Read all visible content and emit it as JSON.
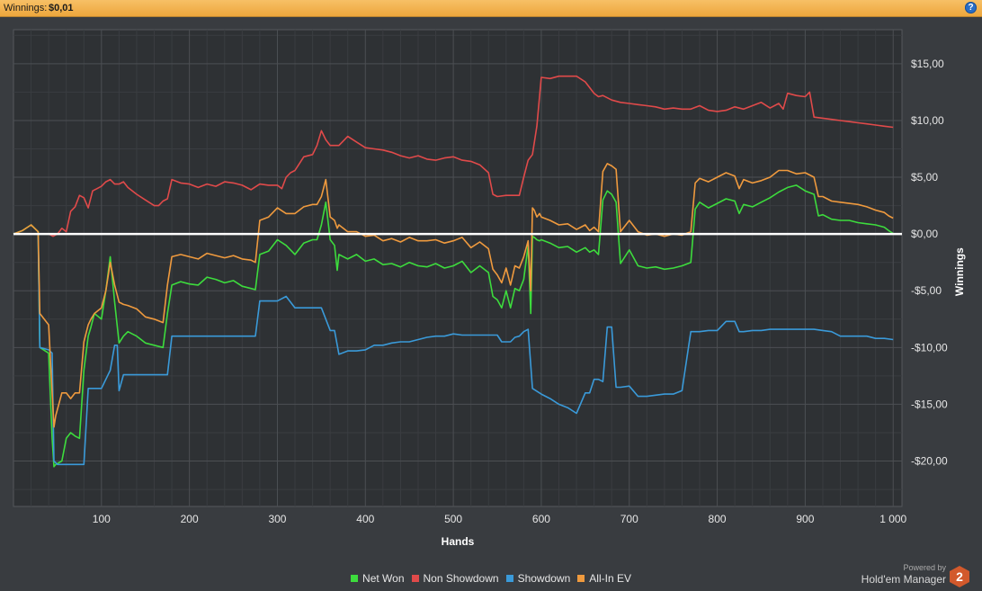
{
  "header": {
    "winnings_label": "Winnings:",
    "winnings_value": "$0,01",
    "help_icon": "question-icon"
  },
  "colors": {
    "background": "#393c40",
    "plot": "#2e3134",
    "grid": "#4c4f53",
    "zero_line": "#ffffff",
    "header": "#f0ac44"
  },
  "branding": {
    "powered_by": "Powered by",
    "product": "Hold'em Manager",
    "logo_number": "2"
  },
  "chart_data": {
    "type": "line",
    "xlabel": "Hands",
    "ylabel": "Winnings",
    "xlim": [
      0,
      1010
    ],
    "ylim": [
      -24,
      18
    ],
    "grid": true,
    "legend_position": "bottom",
    "x_ticks": [
      100,
      200,
      300,
      400,
      500,
      600,
      700,
      800,
      900,
      1000
    ],
    "x_tick_labels": [
      "100",
      "200",
      "300",
      "400",
      "500",
      "600",
      "700",
      "800",
      "900",
      "1 000"
    ],
    "y_ticks": [
      15,
      10,
      5,
      0,
      -5,
      -10,
      -15,
      -20
    ],
    "y_tick_labels": [
      "$15,00",
      "$10,00",
      "$5,00",
      "$0,00",
      "-$5,00",
      "-$10,00",
      "-$15,00",
      "-$20,00"
    ],
    "series": [
      {
        "name": "Net Won",
        "color": "#3ddc3d",
        "x": [
          0,
          10,
          20,
          28,
          30,
          40,
          44,
          46,
          48,
          55,
          60,
          65,
          70,
          75,
          80,
          85,
          88,
          92,
          100,
          105,
          110,
          115,
          120,
          125,
          130,
          140,
          150,
          160,
          170,
          175,
          180,
          190,
          200,
          210,
          220,
          230,
          240,
          250,
          260,
          270,
          275,
          280,
          290,
          300,
          310,
          320,
          330,
          340,
          345,
          350,
          355,
          360,
          365,
          368,
          370,
          380,
          390,
          400,
          410,
          420,
          430,
          440,
          450,
          460,
          470,
          480,
          490,
          500,
          510,
          520,
          530,
          540,
          545,
          550,
          555,
          560,
          565,
          570,
          575,
          580,
          585,
          588,
          590,
          592,
          595,
          598,
          600,
          610,
          620,
          630,
          640,
          650,
          655,
          660,
          665,
          670,
          675,
          680,
          685,
          690,
          700,
          710,
          720,
          730,
          740,
          750,
          760,
          770,
          775,
          780,
          790,
          800,
          810,
          820,
          825,
          830,
          840,
          850,
          860,
          870,
          880,
          890,
          900,
          910,
          915,
          920,
          930,
          940,
          950,
          960,
          970,
          980,
          990,
          995,
          1000
        ],
        "y": [
          0,
          0.3,
          0.8,
          0.2,
          -10,
          -10.5,
          -18,
          -20.5,
          -20.3,
          -20,
          -18,
          -17.5,
          -17.8,
          -18,
          -12,
          -9,
          -8.2,
          -7,
          -7.5,
          -5,
          -2,
          -6,
          -9.6,
          -9,
          -8.6,
          -9,
          -9.6,
          -9.8,
          -10,
          -7,
          -4.5,
          -4.2,
          -4.4,
          -4.5,
          -3.8,
          -4,
          -4.3,
          -4.1,
          -4.6,
          -4.8,
          -4.9,
          -1.8,
          -1.5,
          -0.5,
          -1,
          -1.8,
          -0.8,
          -0.5,
          -0.5,
          0.8,
          2.8,
          -0.5,
          -1,
          -3.2,
          -1.8,
          -2.2,
          -1.8,
          -2.4,
          -2.2,
          -2.7,
          -2.6,
          -2.9,
          -2.5,
          -2.8,
          -2.9,
          -2.6,
          -3,
          -2.8,
          -2.4,
          -3.4,
          -2.8,
          -3.4,
          -5.5,
          -5.8,
          -6.5,
          -5,
          -6.5,
          -4.8,
          -5,
          -4,
          -1,
          -7,
          -0.2,
          -0.3,
          -0.5,
          -0.6,
          -0.5,
          -0.8,
          -1.2,
          -1.1,
          -1.6,
          -1.2,
          -1.6,
          -1.4,
          -1.8,
          3,
          3.8,
          3.5,
          2.8,
          -2.6,
          -1.4,
          -2.8,
          -3,
          -2.9,
          -3.1,
          -3,
          -2.8,
          -2.5,
          2.2,
          2.8,
          2.3,
          2.7,
          3.1,
          2.9,
          1.8,
          2.6,
          2.4,
          2.8,
          3.2,
          3.7,
          4.1,
          4.3,
          3.8,
          3.5,
          1.6,
          1.7,
          1.3,
          1.2,
          1.2,
          1.0,
          0.9,
          0.8,
          0.6,
          0.3,
          0.05
        ]
      },
      {
        "name": "Non Showdown",
        "color": "#e04a4a",
        "x": [
          0,
          20,
          28,
          30,
          40,
          45,
          50,
          55,
          60,
          65,
          70,
          75,
          80,
          85,
          90,
          95,
          100,
          105,
          110,
          115,
          120,
          125,
          130,
          140,
          150,
          160,
          165,
          170,
          175,
          180,
          190,
          200,
          210,
          220,
          230,
          240,
          250,
          260,
          270,
          280,
          290,
          300,
          305,
          310,
          315,
          320,
          325,
          330,
          340,
          345,
          350,
          355,
          360,
          370,
          380,
          390,
          400,
          410,
          420,
          430,
          440,
          450,
          460,
          470,
          480,
          490,
          500,
          510,
          520,
          530,
          540,
          545,
          550,
          560,
          570,
          575,
          580,
          585,
          590,
          595,
          600,
          610,
          620,
          630,
          640,
          650,
          655,
          660,
          665,
          670,
          680,
          690,
          700,
          710,
          720,
          730,
          740,
          750,
          760,
          770,
          780,
          790,
          800,
          810,
          820,
          830,
          840,
          850,
          860,
          870,
          875,
          880,
          890,
          900,
          905,
          910,
          920,
          930,
          940,
          950,
          960,
          970,
          980,
          990,
          1000
        ],
        "y": [
          0,
          0,
          0,
          0,
          0,
          -0.2,
          0,
          0.5,
          0.2,
          2,
          2.4,
          3.4,
          3.2,
          2.3,
          3.8,
          4,
          4.2,
          4.6,
          4.8,
          4.4,
          4.4,
          4.6,
          4.1,
          3.5,
          3.0,
          2.5,
          2.5,
          2.9,
          3.1,
          4.8,
          4.5,
          4.4,
          4.1,
          4.4,
          4.2,
          4.6,
          4.5,
          4.3,
          3.9,
          4.4,
          4.3,
          4.3,
          4.0,
          5,
          5.4,
          5.6,
          6.2,
          6.8,
          7.0,
          7.8,
          9.1,
          8.3,
          7.8,
          7.8,
          8.6,
          8.1,
          7.6,
          7.5,
          7.4,
          7.2,
          6.9,
          6.7,
          6.9,
          6.6,
          6.5,
          6.7,
          6.8,
          6.5,
          6.4,
          6.1,
          5.4,
          3.5,
          3.3,
          3.4,
          3.4,
          3.4,
          5.0,
          6.5,
          7.0,
          9.5,
          13.8,
          13.7,
          13.9,
          13.9,
          13.9,
          13.4,
          12.9,
          12.4,
          12.1,
          12.2,
          11.8,
          11.6,
          11.5,
          11.4,
          11.3,
          11.2,
          11.0,
          11.1,
          11.0,
          11.0,
          11.3,
          10.9,
          10.8,
          10.9,
          11.2,
          11.0,
          11.3,
          11.6,
          11.1,
          11.5,
          11.0,
          12.4,
          12.2,
          12.1,
          12.5,
          10.3,
          10.2,
          10.1,
          10.0,
          9.9,
          9.8,
          9.7,
          9.6,
          9.5,
          9.4
        ]
      },
      {
        "name": "Showdown",
        "color": "#3a9ad9",
        "x": [
          0,
          20,
          28,
          30,
          40,
          44,
          46,
          50,
          60,
          70,
          80,
          85,
          90,
          100,
          110,
          115,
          118,
          120,
          125,
          130,
          140,
          150,
          160,
          170,
          175,
          180,
          190,
          200,
          210,
          220,
          230,
          240,
          250,
          260,
          270,
          275,
          280,
          290,
          300,
          310,
          320,
          330,
          340,
          350,
          360,
          365,
          370,
          380,
          390,
          400,
          410,
          420,
          430,
          440,
          450,
          460,
          470,
          480,
          490,
          500,
          510,
          520,
          530,
          540,
          550,
          555,
          560,
          565,
          570,
          575,
          580,
          585,
          590,
          600,
          610,
          620,
          630,
          640,
          650,
          655,
          660,
          665,
          670,
          675,
          680,
          685,
          690,
          700,
          710,
          720,
          730,
          740,
          750,
          760,
          770,
          775,
          780,
          790,
          800,
          810,
          820,
          825,
          830,
          840,
          850,
          860,
          870,
          880,
          890,
          900,
          910,
          920,
          930,
          940,
          950,
          960,
          970,
          980,
          990,
          1000
        ],
        "y": [
          0,
          0,
          0,
          -10,
          -10.2,
          -10.5,
          -20,
          -20.3,
          -20.3,
          -20.3,
          -20.3,
          -13.6,
          -13.6,
          -13.6,
          -12,
          -9.8,
          -9.8,
          -13.8,
          -12.4,
          -12.4,
          -12.4,
          -12.4,
          -12.4,
          -12.4,
          -12.4,
          -9,
          -9,
          -9,
          -9,
          -9,
          -9,
          -9,
          -9,
          -9,
          -9,
          -9,
          -5.9,
          -5.9,
          -5.9,
          -5.5,
          -6.5,
          -6.5,
          -6.5,
          -6.5,
          -8.5,
          -8.5,
          -10.6,
          -10.3,
          -10.3,
          -10.2,
          -9.8,
          -9.8,
          -9.6,
          -9.5,
          -9.5,
          -9.3,
          -9.1,
          -9,
          -9,
          -8.8,
          -8.9,
          -8.9,
          -8.9,
          -8.9,
          -8.9,
          -9.5,
          -9.5,
          -9.5,
          -9.1,
          -9,
          -8.6,
          -8.4,
          -13.6,
          -14.1,
          -14.5,
          -15,
          -15.3,
          -15.8,
          -14,
          -14,
          -12.8,
          -12.8,
          -13,
          -8.2,
          -8.2,
          -13.5,
          -13.5,
          -13.4,
          -14.3,
          -14.3,
          -14.2,
          -14.1,
          -14.1,
          -13.8,
          -8.6,
          -8.6,
          -8.6,
          -8.5,
          -8.5,
          -7.7,
          -7.7,
          -8.6,
          -8.6,
          -8.5,
          -8.5,
          -8.4,
          -8.4,
          -8.4,
          -8.4,
          -8.4,
          -8.4,
          -8.5,
          -8.6,
          -9,
          -9,
          -9,
          -9,
          -9.2,
          -9.2,
          -9.3
        ]
      },
      {
        "name": "All-In EV",
        "color": "#ef9a3e",
        "x": [
          0,
          10,
          20,
          28,
          30,
          40,
          44,
          46,
          48,
          55,
          60,
          65,
          70,
          75,
          80,
          85,
          88,
          92,
          100,
          105,
          110,
          115,
          120,
          125,
          130,
          140,
          150,
          160,
          170,
          175,
          180,
          190,
          200,
          210,
          220,
          230,
          240,
          250,
          260,
          270,
          275,
          280,
          290,
          300,
          310,
          320,
          330,
          340,
          345,
          350,
          355,
          360,
          365,
          368,
          370,
          380,
          390,
          400,
          410,
          420,
          430,
          440,
          450,
          460,
          470,
          480,
          490,
          500,
          510,
          520,
          530,
          540,
          545,
          550,
          555,
          560,
          565,
          570,
          575,
          580,
          585,
          588,
          590,
          592,
          595,
          598,
          600,
          610,
          620,
          630,
          640,
          650,
          655,
          660,
          665,
          670,
          675,
          680,
          685,
          690,
          700,
          710,
          720,
          730,
          740,
          750,
          760,
          770,
          775,
          780,
          790,
          800,
          810,
          820,
          825,
          830,
          840,
          850,
          860,
          870,
          880,
          890,
          900,
          910,
          915,
          920,
          930,
          940,
          950,
          960,
          970,
          980,
          990,
          995,
          1000
        ],
        "y": [
          0,
          0.3,
          0.8,
          0.2,
          -7,
          -8,
          -14,
          -17,
          -16,
          -14,
          -14,
          -14.5,
          -14,
          -14,
          -9.5,
          -8,
          -7.5,
          -7,
          -6.5,
          -5,
          -2.5,
          -4.5,
          -6,
          -6.2,
          -6.3,
          -6.6,
          -7.3,
          -7.5,
          -7.8,
          -4.5,
          -2,
          -1.8,
          -2,
          -2.2,
          -1.7,
          -1.9,
          -2.1,
          -1.9,
          -2.2,
          -2.3,
          -2.5,
          1.2,
          1.5,
          2.3,
          1.8,
          1.8,
          2.4,
          2.6,
          2.6,
          3.3,
          4.8,
          1.5,
          1.2,
          0.5,
          0.8,
          0.2,
          0.2,
          -0.2,
          -0.1,
          -0.6,
          -0.4,
          -0.7,
          -0.3,
          -0.6,
          -0.6,
          -0.5,
          -0.8,
          -0.6,
          -0.3,
          -1.2,
          -0.7,
          -1.3,
          -3.1,
          -3.6,
          -4.3,
          -3,
          -4.5,
          -2.8,
          -3,
          -2,
          -0.6,
          -5,
          2.3,
          2.1,
          1.5,
          1.8,
          1.5,
          1.2,
          0.8,
          0.9,
          0.4,
          0.8,
          0.3,
          0.6,
          0.2,
          5.5,
          6.2,
          6,
          5.7,
          0.2,
          1.2,
          0.2,
          -0.1,
          0,
          -0.2,
          0,
          -0.1,
          0.2,
          4.5,
          4.9,
          4.6,
          5,
          5.4,
          5.1,
          4,
          4.8,
          4.5,
          4.7,
          5,
          5.6,
          5.6,
          5.3,
          5.4,
          5,
          3.3,
          3.3,
          2.9,
          2.8,
          2.7,
          2.6,
          2.4,
          2.1,
          1.9,
          1.6,
          1.4
        ]
      }
    ]
  }
}
